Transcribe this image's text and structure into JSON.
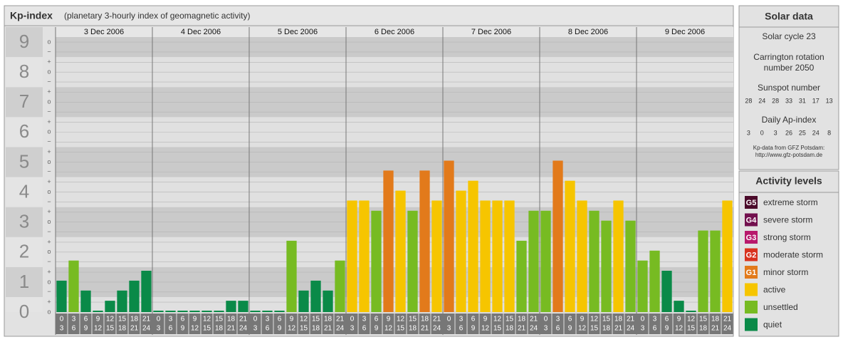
{
  "chart_data": {
    "type": "bar",
    "title": "Kp-index",
    "subtitle": "(planetary 3-hourly index of geomagnetic activity)",
    "days": [
      "3 Dec 2006",
      "4 Dec 2006",
      "5 Dec 2006",
      "6 Dec 2006",
      "7 Dec 2006",
      "8 Dec 2006",
      "9 Dec 2006"
    ],
    "intervals": [
      {
        "from": 0,
        "to": 3
      },
      {
        "from": 3,
        "to": 6
      },
      {
        "from": 6,
        "to": 9
      },
      {
        "from": 9,
        "to": 12
      },
      {
        "from": 12,
        "to": 15
      },
      {
        "from": 15,
        "to": 18
      },
      {
        "from": 18,
        "to": 21
      },
      {
        "from": 21,
        "to": 24
      }
    ],
    "values": [
      1,
      1.67,
      0.67,
      0,
      0.33,
      0.67,
      1,
      1.33,
      0,
      0,
      0,
      0,
      0,
      0,
      0.33,
      0.33,
      0,
      0,
      0,
      2.33,
      0.67,
      1,
      0.67,
      1.67,
      3.67,
      3.67,
      3.33,
      4.67,
      4,
      3.33,
      4.67,
      3.67,
      5,
      4,
      4.33,
      3.67,
      3.67,
      3.67,
      2.33,
      3.33,
      3.33,
      5,
      4.33,
      3.67,
      3.33,
      3,
      3.67,
      3,
      1.67,
      2,
      1.33,
      0.33,
      0,
      2.67,
      2.67,
      3.67
    ],
    "colors": [
      "#0a8a48",
      "#77bb22",
      "#0a8a48",
      "#0a8a48",
      "#0a8a48",
      "#0a8a48",
      "#0a8a48",
      "#0a8a48",
      "#0a8a48",
      "#0a8a48",
      "#0a8a48",
      "#0a8a48",
      "#0a8a48",
      "#0a8a48",
      "#0a8a48",
      "#0a8a48",
      "#0a8a48",
      "#0a8a48",
      "#0a8a48",
      "#77bb22",
      "#0a8a48",
      "#0a8a48",
      "#0a8a48",
      "#77bb22",
      "#f6c500",
      "#f6c500",
      "#77bb22",
      "#e27a1b",
      "#f6c500",
      "#77bb22",
      "#e27a1b",
      "#f6c500",
      "#e27a1b",
      "#f6c500",
      "#f6c500",
      "#f6c500",
      "#f6c500",
      "#f6c500",
      "#77bb22",
      "#77bb22",
      "#77bb22",
      "#e27a1b",
      "#f6c500",
      "#f6c500",
      "#77bb22",
      "#77bb22",
      "#f6c500",
      "#77bb22",
      "#77bb22",
      "#77bb22",
      "#0a8a48",
      "#0a8a48",
      "#0a8a48",
      "#77bb22",
      "#77bb22",
      "#f6c500"
    ],
    "ylim": [
      0,
      9.5
    ],
    "yticks": [
      0,
      1,
      2,
      3,
      4,
      5,
      6,
      7,
      8,
      9
    ],
    "minor_ticks": [
      {
        "value": 0,
        "label": "o"
      },
      {
        "value": 0.33,
        "label": "+"
      },
      {
        "value": 0.67,
        "label": "−"
      },
      {
        "value": 1,
        "label": "o"
      },
      {
        "value": 1.33,
        "label": "+"
      },
      {
        "value": 1.67,
        "label": "−"
      },
      {
        "value": 2,
        "label": "o"
      },
      {
        "value": 2.33,
        "label": "+"
      },
      {
        "value": 2.67,
        "label": "−"
      },
      {
        "value": 3,
        "label": "o"
      },
      {
        "value": 3.33,
        "label": "+"
      },
      {
        "value": 3.67,
        "label": "−"
      },
      {
        "value": 4,
        "label": "o"
      },
      {
        "value": 4.33,
        "label": "+"
      },
      {
        "value": 4.67,
        "label": "−"
      },
      {
        "value": 5,
        "label": "o"
      },
      {
        "value": 5.33,
        "label": "+"
      },
      {
        "value": 5.67,
        "label": "−"
      },
      {
        "value": 6,
        "label": "o"
      },
      {
        "value": 6.33,
        "label": "+"
      },
      {
        "value": 6.67,
        "label": "−"
      },
      {
        "value": 7,
        "label": "o"
      },
      {
        "value": 7.33,
        "label": "+"
      },
      {
        "value": 7.67,
        "label": "−"
      },
      {
        "value": 8,
        "label": "o"
      },
      {
        "value": 8.33,
        "label": "+"
      },
      {
        "value": 8.67,
        "label": "−"
      },
      {
        "value": 9,
        "label": "o"
      }
    ],
    "grid": true
  },
  "solar": {
    "title": "Solar data",
    "cycle": "Solar cycle 23",
    "carrington": [
      "Carrington rotation",
      "number 2050"
    ],
    "sunspot_title": "Sunspot number",
    "sunspot": [
      28,
      24,
      28,
      33,
      31,
      17,
      13
    ],
    "ap_title": "Daily Ap-index",
    "ap": [
      3,
      0,
      3,
      26,
      25,
      24,
      8
    ],
    "source": [
      "Kp-data from GFZ Potsdam:",
      "http://www.gfz-potsdam.de"
    ]
  },
  "levels": {
    "title": "Activity levels",
    "items": [
      {
        "badge": "G5",
        "name": "extreme storm",
        "color": "#4b0a2a"
      },
      {
        "badge": "G4",
        "name": "severe storm",
        "color": "#72104e"
      },
      {
        "badge": "G3",
        "name": "strong storm",
        "color": "#b8186c"
      },
      {
        "badge": "G2",
        "name": "moderate storm",
        "color": "#d8321e"
      },
      {
        "badge": "G1",
        "name": "minor storm",
        "color": "#e27a1b"
      },
      {
        "name": "active",
        "color": "#f6c500"
      },
      {
        "name": "unsettled",
        "color": "#77bb22"
      },
      {
        "name": "quiet",
        "color": "#0a8a48"
      }
    ]
  }
}
